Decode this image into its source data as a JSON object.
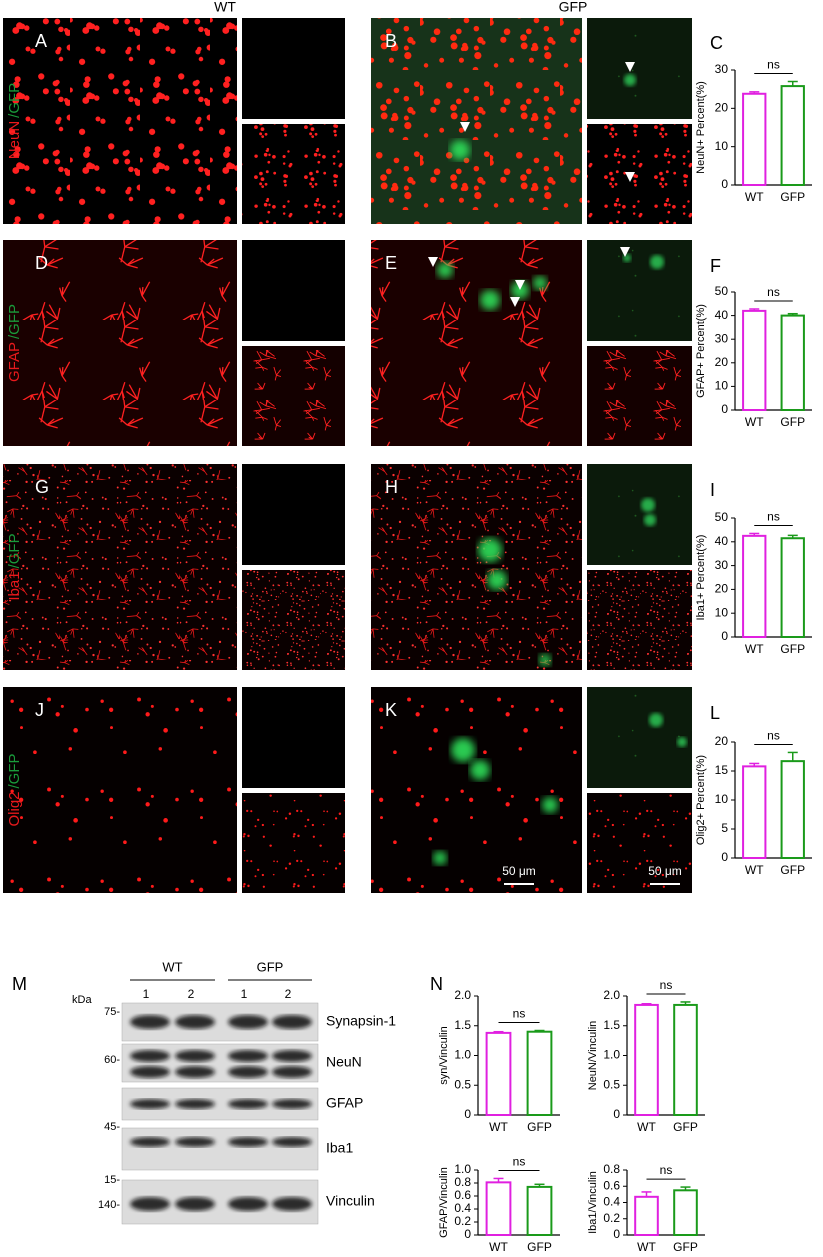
{
  "column_headers": [
    "WT",
    "GFP"
  ],
  "panel_letters": [
    "A",
    "B",
    "C",
    "D",
    "E",
    "F",
    "G",
    "H",
    "I",
    "J",
    "K",
    "L",
    "M",
    "N"
  ],
  "row_labels": [
    {
      "marker": "NeuN",
      "reporter": "/GFP"
    },
    {
      "marker": "GFAP",
      "reporter": "/GFP"
    },
    {
      "marker": "Iba1",
      "reporter": "/GFP"
    },
    {
      "marker": "Olig2",
      "reporter": "/GFP"
    }
  ],
  "scale_bars": [
    "50 μm",
    "50 μm"
  ],
  "chart_data": [
    {
      "type": "bar",
      "y_label": "NeuN+ Percent(%)",
      "categories": [
        "WT",
        "GFP"
      ],
      "values": [
        23.8,
        25.8
      ],
      "errors": [
        0.5,
        1.2
      ],
      "colors": [
        "#e020e0",
        "#1a9a1a"
      ],
      "ylim": [
        0,
        30
      ],
      "yticks": [
        0,
        10,
        20,
        30
      ],
      "annotation": "ns"
    },
    {
      "type": "bar",
      "y_label": "GFAP+ Percent(%)",
      "categories": [
        "WT",
        "GFP"
      ],
      "values": [
        42,
        40
      ],
      "errors": [
        0.8,
        0.8
      ],
      "colors": [
        "#e020e0",
        "#1a9a1a"
      ],
      "ylim": [
        0,
        50
      ],
      "yticks": [
        0,
        10,
        20,
        30,
        40,
        50
      ],
      "annotation": "ns"
    },
    {
      "type": "bar",
      "y_label": "Iba1+ Percent(%)",
      "categories": [
        "WT",
        "GFP"
      ],
      "values": [
        42.5,
        41.5
      ],
      "errors": [
        1,
        1.2
      ],
      "colors": [
        "#e020e0",
        "#1a9a1a"
      ],
      "ylim": [
        0,
        50
      ],
      "yticks": [
        0,
        10,
        20,
        30,
        40,
        50
      ],
      "annotation": "ns"
    },
    {
      "type": "bar",
      "y_label": "Olig2+ Percent(%)",
      "categories": [
        "WT",
        "GFP"
      ],
      "values": [
        15.8,
        16.7
      ],
      "errors": [
        0.5,
        1.5
      ],
      "colors": [
        "#e020e0",
        "#1a9a1a"
      ],
      "ylim": [
        0,
        20
      ],
      "yticks": [
        0,
        5,
        10,
        15,
        20
      ],
      "annotation": "ns"
    },
    {
      "type": "bar",
      "y_label": "syn/Vinculin",
      "categories": [
        "WT",
        "GFP"
      ],
      "values": [
        1.38,
        1.4
      ],
      "errors": [
        0.02,
        0.02
      ],
      "colors": [
        "#e020e0",
        "#1a9a1a"
      ],
      "ylim": [
        0,
        2
      ],
      "yticks": [
        0,
        0.5,
        {
          "value": 1,
          "label": "1.0"
        },
        1.5,
        {
          "value": 2,
          "label": "2.0"
        }
      ],
      "annotation": "ns"
    },
    {
      "type": "bar",
      "y_label": "NeuN/Vinculin",
      "categories": [
        "WT",
        "GFP"
      ],
      "values": [
        1.85,
        1.85
      ],
      "errors": [
        0.02,
        0.05
      ],
      "colors": [
        "#e020e0",
        "#1a9a1a"
      ],
      "ylim": [
        0,
        2
      ],
      "yticks": [
        0,
        0.5,
        {
          "value": 1,
          "label": "1.0"
        },
        1.5,
        {
          "value": 2,
          "label": "2.0"
        }
      ],
      "annotation": "ns"
    },
    {
      "type": "bar",
      "y_label": "GFAP/Vinculin",
      "categories": [
        "WT",
        "GFP"
      ],
      "values": [
        0.81,
        0.74
      ],
      "errors": [
        0.06,
        0.04
      ],
      "colors": [
        "#e020e0",
        "#1a9a1a"
      ],
      "ylim": [
        0,
        1
      ],
      "yticks": [
        0,
        0.2,
        0.4,
        0.6,
        0.8,
        {
          "value": 1,
          "label": "1.0"
        }
      ],
      "annotation": "ns"
    },
    {
      "type": "bar",
      "y_label": "Iba1/Vinculin",
      "categories": [
        "WT",
        "GFP"
      ],
      "values": [
        0.47,
        0.55
      ],
      "errors": [
        0.06,
        0.04
      ],
      "colors": [
        "#e020e0",
        "#1a9a1a"
      ],
      "ylim": [
        0,
        0.8
      ],
      "yticks": [
        0,
        0.2,
        0.4,
        0.6,
        0.8
      ],
      "annotation": "ns"
    }
  ],
  "western_blot": {
    "unit": "kDa",
    "groups": [
      "WT",
      "GFP"
    ],
    "lanes": [
      "1",
      "2",
      "1",
      "2"
    ],
    "markers": [
      "75-",
      "60-",
      "45-",
      "15-",
      "140-"
    ],
    "proteins": [
      "Synapsin-1",
      "NeuN",
      "GFAP",
      "Iba1",
      "Vinculin"
    ]
  }
}
